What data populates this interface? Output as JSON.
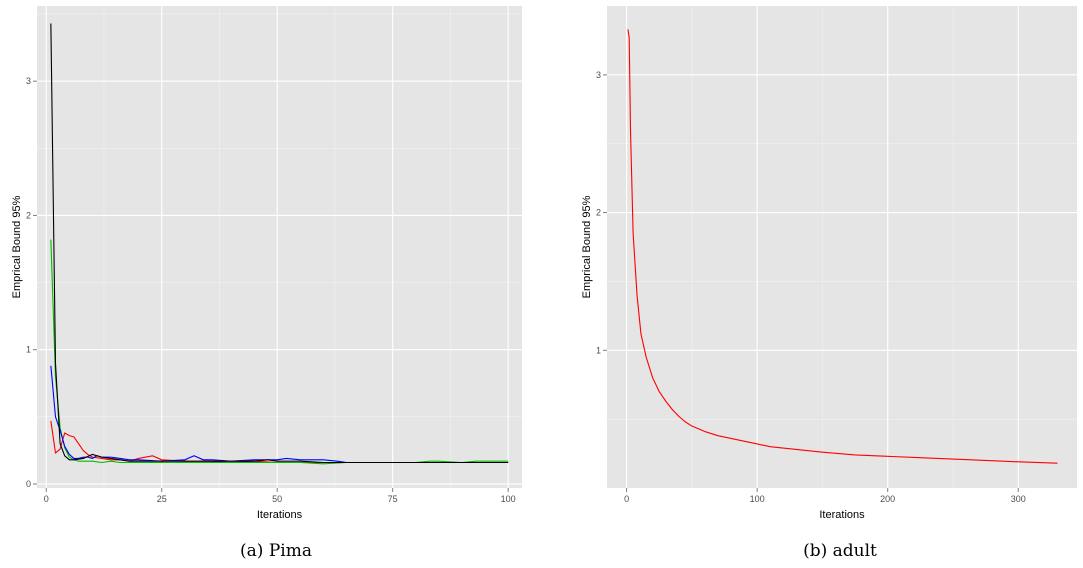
{
  "chart_data": [
    {
      "type": "line",
      "caption": "(a) Pima",
      "xlabel": "Iterations",
      "ylabel": "Emprical Bound 95%",
      "xlim": [
        -2,
        103
      ],
      "ylim": [
        -0.03,
        3.56
      ],
      "xticks": [
        0,
        25,
        50,
        75,
        100
      ],
      "xtick_labels": [
        "0",
        "25",
        "50",
        "75",
        "100"
      ],
      "yticks": [
        0,
        1,
        2,
        3
      ],
      "ytick_labels": [
        "0",
        "1",
        "2",
        "3"
      ],
      "grid": true,
      "series": [
        {
          "color": "#ff0000",
          "points": [
            [
              1,
              0.47
            ],
            [
              2,
              0.23
            ],
            [
              3,
              0.26
            ],
            [
              4,
              0.38
            ],
            [
              5,
              0.36
            ],
            [
              6,
              0.35
            ],
            [
              7,
              0.3
            ],
            [
              8,
              0.25
            ],
            [
              9,
              0.22
            ],
            [
              10,
              0.2
            ],
            [
              12,
              0.19
            ],
            [
              14,
              0.18
            ],
            [
              16,
              0.18
            ],
            [
              18,
              0.17
            ],
            [
              20,
              0.19
            ],
            [
              23,
              0.21
            ],
            [
              25,
              0.18
            ],
            [
              30,
              0.17
            ],
            [
              35,
              0.17
            ],
            [
              40,
              0.16
            ],
            [
              45,
              0.17
            ],
            [
              50,
              0.16
            ],
            [
              55,
              0.16
            ],
            [
              60,
              0.16
            ],
            [
              65,
              0.16
            ],
            [
              70,
              0.16
            ],
            [
              75,
              0.16
            ],
            [
              80,
              0.16
            ],
            [
              85,
              0.16
            ],
            [
              90,
              0.16
            ],
            [
              95,
              0.16
            ],
            [
              100,
              0.16
            ]
          ]
        },
        {
          "color": "#00bb00",
          "points": [
            [
              1,
              1.82
            ],
            [
              2,
              0.8
            ],
            [
              3,
              0.42
            ],
            [
              4,
              0.27
            ],
            [
              5,
              0.2
            ],
            [
              6,
              0.18
            ],
            [
              7,
              0.17
            ],
            [
              8,
              0.17
            ],
            [
              10,
              0.17
            ],
            [
              12,
              0.16
            ],
            [
              14,
              0.17
            ],
            [
              16,
              0.16
            ],
            [
              20,
              0.16
            ],
            [
              25,
              0.16
            ],
            [
              30,
              0.16
            ],
            [
              35,
              0.16
            ],
            [
              40,
              0.16
            ],
            [
              45,
              0.16
            ],
            [
              50,
              0.16
            ],
            [
              55,
              0.16
            ],
            [
              60,
              0.15
            ],
            [
              65,
              0.16
            ],
            [
              70,
              0.16
            ],
            [
              75,
              0.16
            ],
            [
              80,
              0.16
            ],
            [
              83,
              0.17
            ],
            [
              85,
              0.17
            ],
            [
              90,
              0.16
            ],
            [
              93,
              0.17
            ],
            [
              95,
              0.17
            ],
            [
              100,
              0.17
            ]
          ]
        },
        {
          "color": "#0000ff",
          "points": [
            [
              1,
              0.88
            ],
            [
              2,
              0.5
            ],
            [
              3,
              0.4
            ],
            [
              4,
              0.28
            ],
            [
              5,
              0.22
            ],
            [
              6,
              0.19
            ],
            [
              7,
              0.19
            ],
            [
              8,
              0.2
            ],
            [
              9,
              0.2
            ],
            [
              10,
              0.19
            ],
            [
              11,
              0.21
            ],
            [
              12,
              0.2
            ],
            [
              14,
              0.2
            ],
            [
              16,
              0.19
            ],
            [
              18,
              0.18
            ],
            [
              20,
              0.18
            ],
            [
              25,
              0.17
            ],
            [
              30,
              0.18
            ],
            [
              32,
              0.21
            ],
            [
              34,
              0.18
            ],
            [
              36,
              0.18
            ],
            [
              40,
              0.17
            ],
            [
              45,
              0.18
            ],
            [
              50,
              0.18
            ],
            [
              52,
              0.19
            ],
            [
              55,
              0.18
            ],
            [
              60,
              0.18
            ],
            [
              63,
              0.17
            ],
            [
              65,
              0.16
            ],
            [
              70,
              0.16
            ],
            [
              75,
              0.16
            ],
            [
              80,
              0.16
            ],
            [
              85,
              0.16
            ],
            [
              90,
              0.16
            ],
            [
              95,
              0.16
            ],
            [
              100,
              0.16
            ]
          ]
        },
        {
          "color": "#000000",
          "points": [
            [
              1,
              3.43
            ],
            [
              2,
              0.9
            ],
            [
              3,
              0.3
            ],
            [
              4,
              0.21
            ],
            [
              5,
              0.18
            ],
            [
              6,
              0.18
            ],
            [
              8,
              0.19
            ],
            [
              10,
              0.22
            ],
            [
              12,
              0.2
            ],
            [
              14,
              0.19
            ],
            [
              16,
              0.18
            ],
            [
              18,
              0.17
            ],
            [
              20,
              0.17
            ],
            [
              25,
              0.17
            ],
            [
              30,
              0.17
            ],
            [
              35,
              0.17
            ],
            [
              40,
              0.17
            ],
            [
              45,
              0.17
            ],
            [
              48,
              0.18
            ],
            [
              50,
              0.17
            ],
            [
              55,
              0.17
            ],
            [
              60,
              0.16
            ],
            [
              65,
              0.16
            ],
            [
              70,
              0.16
            ],
            [
              75,
              0.16
            ],
            [
              80,
              0.16
            ],
            [
              85,
              0.16
            ],
            [
              90,
              0.16
            ],
            [
              95,
              0.16
            ],
            [
              100,
              0.16
            ]
          ]
        }
      ]
    },
    {
      "type": "line",
      "caption": "(b) adult",
      "xlabel": "Iterations",
      "ylabel": "Emprical Bound 95%",
      "xlim": [
        -15,
        345
      ],
      "ylim": [
        0.0,
        3.5
      ],
      "xticks": [
        0,
        100,
        200,
        300
      ],
      "xtick_labels": [
        "0",
        "100",
        "200",
        "300"
      ],
      "yticks": [
        1,
        2,
        3
      ],
      "ytick_labels": [
        "1",
        "2",
        "3"
      ],
      "grid": true,
      "series": [
        {
          "color": "#ff0000",
          "points": [
            [
              1,
              3.33
            ],
            [
              2,
              3.27
            ],
            [
              3,
              2.6
            ],
            [
              5,
              1.85
            ],
            [
              8,
              1.4
            ],
            [
              11,
              1.12
            ],
            [
              15,
              0.95
            ],
            [
              20,
              0.8
            ],
            [
              25,
              0.7
            ],
            [
              30,
              0.63
            ],
            [
              35,
              0.57
            ],
            [
              40,
              0.52
            ],
            [
              45,
              0.48
            ],
            [
              50,
              0.45
            ],
            [
              60,
              0.41
            ],
            [
              70,
              0.38
            ],
            [
              80,
              0.36
            ],
            [
              90,
              0.34
            ],
            [
              100,
              0.32
            ],
            [
              110,
              0.3
            ],
            [
              120,
              0.29
            ],
            [
              130,
              0.28
            ],
            [
              150,
              0.26
            ],
            [
              175,
              0.24
            ],
            [
              200,
              0.23
            ],
            [
              225,
              0.22
            ],
            [
              250,
              0.21
            ],
            [
              275,
              0.2
            ],
            [
              300,
              0.19
            ],
            [
              330,
              0.18
            ]
          ]
        }
      ]
    }
  ]
}
